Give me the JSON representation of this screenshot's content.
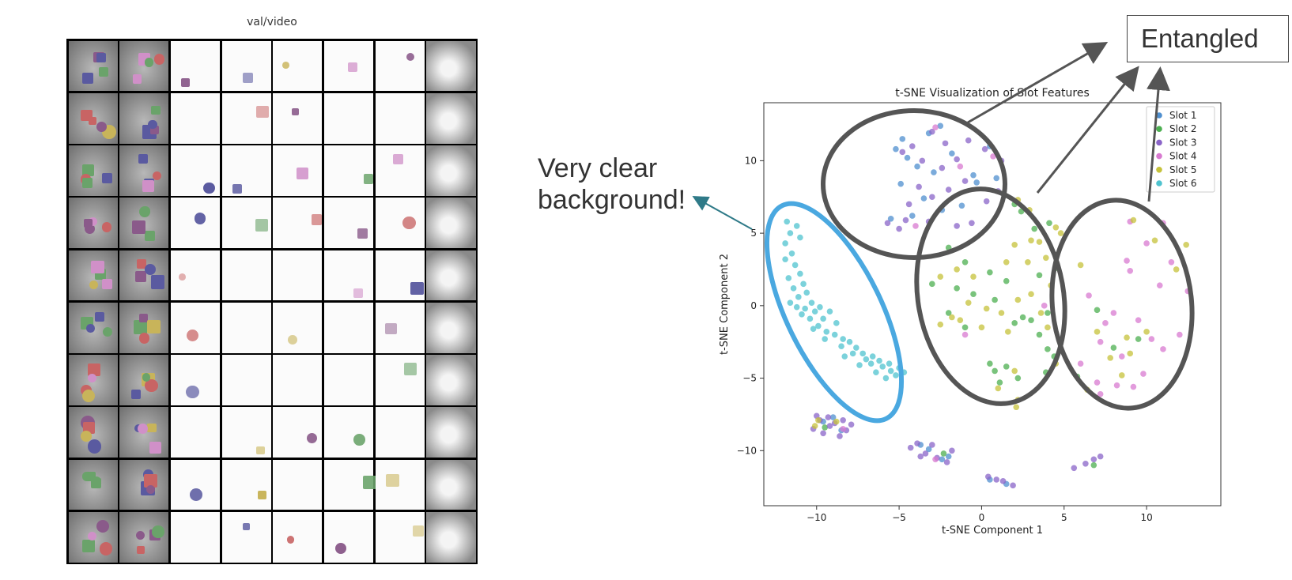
{
  "left_panel": {
    "title": "val/video",
    "rows": 10,
    "cols": 8
  },
  "annotations": {
    "clear_line1": "Very clear",
    "clear_line2": "background!",
    "entangled": "Entangled"
  },
  "colors": {
    "slot1": "#4f8fcf",
    "slot2": "#4caf50",
    "slot3": "#8a64c8",
    "slot4": "#d87ad0",
    "slot5": "#c6c23a",
    "slot6": "#4fc3cf",
    "highlight_ellipse": "#4aa8e0",
    "group_ellipse": "#555555"
  },
  "chart_data": {
    "type": "scatter",
    "title": "t-SNE Visualization of Slot Features",
    "xlabel": "t-SNE Component 1",
    "ylabel": "t-SNE Component 2",
    "xlim": [
      -13.2,
      14.5
    ],
    "ylim": [
      -13.8,
      14.0
    ],
    "xticks": [
      -10,
      -5,
      0,
      5,
      10
    ],
    "xtick_labels": [
      "−10",
      "−5",
      "0",
      "5",
      "10"
    ],
    "yticks": [
      -10,
      -5,
      0,
      5,
      10
    ],
    "ytick_labels": [
      "−10",
      "−5",
      "0",
      "5",
      "10"
    ],
    "legend_position": "top-right",
    "series": [
      {
        "name": "Slot 1",
        "color": "#4f8fcf",
        "points": [
          [
            -5.2,
            10.8
          ],
          [
            -4.8,
            11.5
          ],
          [
            -4.5,
            10.2
          ],
          [
            -3.9,
            9.6
          ],
          [
            -3.2,
            11.9
          ],
          [
            -2.5,
            12.4
          ],
          [
            -1.8,
            10.5
          ],
          [
            -0.5,
            9.0
          ],
          [
            0.5,
            11.0
          ],
          [
            -5.5,
            6.0
          ],
          [
            -4.2,
            6.2
          ],
          [
            -3.5,
            7.4
          ],
          [
            -2.4,
            6.6
          ],
          [
            -1.2,
            6.9
          ],
          [
            -0.3,
            8.5
          ],
          [
            0.9,
            8.8
          ],
          [
            -4.9,
            8.4
          ],
          [
            -2.9,
            9.2
          ],
          [
            -9.6,
            -8.0
          ],
          [
            -9.0,
            -7.7
          ],
          [
            -8.5,
            -8.6
          ],
          [
            -3.7,
            -9.6
          ],
          [
            -3.2,
            -9.9
          ],
          [
            -2.4,
            -10.6
          ],
          [
            -2.0,
            -10.4
          ],
          [
            0.5,
            -12.0
          ],
          [
            1.5,
            -12.3
          ]
        ]
      },
      {
        "name": "Slot 2",
        "color": "#4caf50",
        "points": [
          [
            2.0,
            7.0
          ],
          [
            2.4,
            6.5
          ],
          [
            3.2,
            5.3
          ],
          [
            4.1,
            5.7
          ],
          [
            -2.0,
            4.0
          ],
          [
            -1.0,
            3.0
          ],
          [
            0.5,
            2.3
          ],
          [
            1.5,
            1.7
          ],
          [
            3.5,
            2.1
          ],
          [
            4.6,
            2.6
          ],
          [
            -3.0,
            1.5
          ],
          [
            -2.0,
            -0.5
          ],
          [
            -1.5,
            1.2
          ],
          [
            -0.5,
            0.8
          ],
          [
            0.8,
            0.4
          ],
          [
            2.5,
            -0.8
          ],
          [
            3.0,
            -1.0
          ],
          [
            4.0,
            -0.5
          ],
          [
            2.0,
            -1.2
          ],
          [
            -1.0,
            -1.5
          ],
          [
            0.5,
            -4.0
          ],
          [
            0.8,
            -4.5
          ],
          [
            1.1,
            -5.3
          ],
          [
            1.5,
            -4.2
          ],
          [
            2.2,
            -5.0
          ],
          [
            3.5,
            -2.0
          ],
          [
            4.0,
            -3.0
          ],
          [
            4.4,
            -3.5
          ],
          [
            3.9,
            -4.6
          ],
          [
            -9.5,
            -8.4
          ],
          [
            -2.3,
            -10.2
          ],
          [
            6.8,
            -11.0
          ],
          [
            5.8,
            -4.9
          ],
          [
            9.5,
            -2.3
          ],
          [
            8.0,
            -2.9
          ],
          [
            7.0,
            -0.3
          ]
        ]
      },
      {
        "name": "Slot 3",
        "color": "#8a64c8",
        "points": [
          [
            -4.8,
            10.6
          ],
          [
            -4.2,
            11.0
          ],
          [
            -3.6,
            10.0
          ],
          [
            -3.0,
            12.0
          ],
          [
            -2.2,
            11.2
          ],
          [
            -1.5,
            10.1
          ],
          [
            -0.8,
            11.4
          ],
          [
            0.2,
            10.8
          ],
          [
            1.2,
            10.0
          ],
          [
            -5.7,
            5.7
          ],
          [
            -5.0,
            5.3
          ],
          [
            -4.4,
            7.0
          ],
          [
            -3.0,
            7.5
          ],
          [
            -2.0,
            8.0
          ],
          [
            -1.5,
            5.5
          ],
          [
            -0.6,
            5.7
          ],
          [
            0.3,
            7.2
          ],
          [
            1.0,
            7.9
          ],
          [
            -3.8,
            8.2
          ],
          [
            -2.4,
            9.5
          ],
          [
            -1.0,
            8.6
          ],
          [
            -4.6,
            5.9
          ],
          [
            -3.2,
            5.8
          ],
          [
            -10.0,
            -7.6
          ],
          [
            -9.8,
            -7.9
          ],
          [
            -9.3,
            -7.7
          ],
          [
            -9.2,
            -8.3
          ],
          [
            -8.9,
            -8.1
          ],
          [
            -10.2,
            -8.5
          ],
          [
            -9.6,
            -8.8
          ],
          [
            -8.4,
            -7.9
          ],
          [
            -8.2,
            -8.6
          ],
          [
            -7.9,
            -8.2
          ],
          [
            -8.6,
            -9.0
          ],
          [
            -4.3,
            -9.8
          ],
          [
            -3.9,
            -9.5
          ],
          [
            -3.4,
            -10.2
          ],
          [
            -3.0,
            -9.6
          ],
          [
            -2.7,
            -10.5
          ],
          [
            -2.1,
            -10.8
          ],
          [
            -1.8,
            -10.0
          ],
          [
            -3.7,
            -10.4
          ],
          [
            0.4,
            -11.8
          ],
          [
            0.9,
            -12.0
          ],
          [
            1.3,
            -12.1
          ],
          [
            1.9,
            -12.4
          ],
          [
            5.6,
            -11.2
          ],
          [
            6.3,
            -10.9
          ],
          [
            6.8,
            -10.6
          ],
          [
            7.2,
            -10.4
          ]
        ]
      },
      {
        "name": "Slot 4",
        "color": "#d87ad0",
        "points": [
          [
            -2.8,
            12.3
          ],
          [
            -1.3,
            9.6
          ],
          [
            0.7,
            10.3
          ],
          [
            -4.0,
            5.5
          ],
          [
            9.0,
            5.8
          ],
          [
            11.0,
            5.7
          ],
          [
            10.0,
            4.3
          ],
          [
            11.5,
            3.0
          ],
          [
            9.0,
            2.4
          ],
          [
            8.8,
            3.1
          ],
          [
            10.8,
            1.4
          ],
          [
            12.5,
            1.0
          ],
          [
            8.0,
            -0.5
          ],
          [
            7.5,
            -1.2
          ],
          [
            6.5,
            0.7
          ],
          [
            9.5,
            -1.0
          ],
          [
            10.3,
            -2.3
          ],
          [
            7.2,
            -2.5
          ],
          [
            8.5,
            -3.5
          ],
          [
            9.8,
            -4.7
          ],
          [
            11.0,
            -3.0
          ],
          [
            12.0,
            -2.0
          ],
          [
            6.0,
            -4.0
          ],
          [
            7.0,
            -5.3
          ],
          [
            9.2,
            -5.6
          ],
          [
            8.2,
            -5.5
          ],
          [
            7.2,
            -6.1
          ],
          [
            3.8,
            0.0
          ],
          [
            -1.0,
            -2.0
          ],
          [
            -8.4,
            -8.5
          ],
          [
            -2.8,
            -10.6
          ]
        ]
      },
      {
        "name": "Slot 5",
        "color": "#c6c23a",
        "points": [
          [
            2.2,
            7.3
          ],
          [
            2.9,
            6.6
          ],
          [
            4.5,
            5.4
          ],
          [
            3.0,
            4.5
          ],
          [
            2.0,
            4.2
          ],
          [
            3.5,
            4.4
          ],
          [
            4.8,
            5.0
          ],
          [
            1.5,
            3.0
          ],
          [
            2.8,
            3.0
          ],
          [
            3.9,
            3.3
          ],
          [
            -1.5,
            2.5
          ],
          [
            -0.5,
            2.0
          ],
          [
            -2.5,
            2.0
          ],
          [
            -1.8,
            -0.8
          ],
          [
            -0.8,
            0.2
          ],
          [
            0.3,
            -0.2
          ],
          [
            1.2,
            -0.5
          ],
          [
            2.2,
            0.4
          ],
          [
            3.0,
            0.8
          ],
          [
            4.2,
            1.4
          ],
          [
            -2.5,
            -1.3
          ],
          [
            -1.3,
            -1.0
          ],
          [
            0.0,
            -1.5
          ],
          [
            1.6,
            -1.8
          ],
          [
            3.6,
            -0.5
          ],
          [
            4.0,
            -1.5
          ],
          [
            4.5,
            -4.0
          ],
          [
            2.0,
            -4.5
          ],
          [
            1.0,
            -5.7
          ],
          [
            2.2,
            -6.5
          ],
          [
            2.1,
            -7.0
          ],
          [
            9.2,
            5.9
          ],
          [
            10.5,
            4.5
          ],
          [
            11.8,
            2.5
          ],
          [
            12.4,
            4.2
          ],
          [
            6.0,
            2.8
          ],
          [
            7.0,
            -1.8
          ],
          [
            8.8,
            -2.2
          ],
          [
            10.0,
            -1.8
          ],
          [
            9.0,
            -3.3
          ],
          [
            7.8,
            -3.6
          ],
          [
            8.5,
            -4.8
          ],
          [
            6.4,
            -5.8
          ],
          [
            -9.9,
            -7.9
          ],
          [
            -8.8,
            -8.0
          ],
          [
            -10.1,
            -8.3
          ]
        ]
      },
      {
        "name": "Slot 6",
        "color": "#4fc3cf",
        "points": [
          [
            -11.8,
            5.8
          ],
          [
            -11.6,
            5.0
          ],
          [
            -11.9,
            4.3
          ],
          [
            -11.5,
            3.6
          ],
          [
            -11.2,
            5.5
          ],
          [
            -11.0,
            4.7
          ],
          [
            -11.3,
            2.8
          ],
          [
            -11.7,
            1.9
          ],
          [
            -11.4,
            1.2
          ],
          [
            -11.0,
            2.2
          ],
          [
            -10.8,
            1.5
          ],
          [
            -11.1,
            0.6
          ],
          [
            -10.6,
            0.9
          ],
          [
            -10.3,
            0.2
          ],
          [
            -10.7,
            -0.2
          ],
          [
            -10.1,
            -0.4
          ],
          [
            -10.4,
            -0.9
          ],
          [
            -9.8,
            -0.1
          ],
          [
            -9.6,
            -0.9
          ],
          [
            -9.2,
            -0.4
          ],
          [
            -9.9,
            -1.4
          ],
          [
            -9.4,
            -1.8
          ],
          [
            -8.8,
            -1.2
          ],
          [
            -8.9,
            -2.0
          ],
          [
            -8.4,
            -2.3
          ],
          [
            -8.0,
            -2.5
          ],
          [
            -8.5,
            -2.8
          ],
          [
            -7.6,
            -2.9
          ],
          [
            -7.8,
            -3.3
          ],
          [
            -7.2,
            -3.3
          ],
          [
            -7.0,
            -3.7
          ],
          [
            -6.6,
            -3.5
          ],
          [
            -6.7,
            -4.0
          ],
          [
            -6.2,
            -3.8
          ],
          [
            -6.0,
            -4.2
          ],
          [
            -5.6,
            -4.0
          ],
          [
            -5.5,
            -4.5
          ],
          [
            -5.0,
            -4.3
          ],
          [
            -5.2,
            -4.8
          ],
          [
            -4.7,
            -4.6
          ],
          [
            -11.6,
            0.2
          ],
          [
            -10.9,
            -0.6
          ],
          [
            -10.2,
            -1.6
          ],
          [
            -9.5,
            -2.3
          ],
          [
            -8.3,
            -3.5
          ],
          [
            -7.4,
            -4.1
          ],
          [
            -6.4,
            -4.6
          ],
          [
            -5.8,
            -5.0
          ],
          [
            -11.9,
            3.2
          ],
          [
            -11.2,
            -0.1
          ]
        ]
      }
    ]
  }
}
